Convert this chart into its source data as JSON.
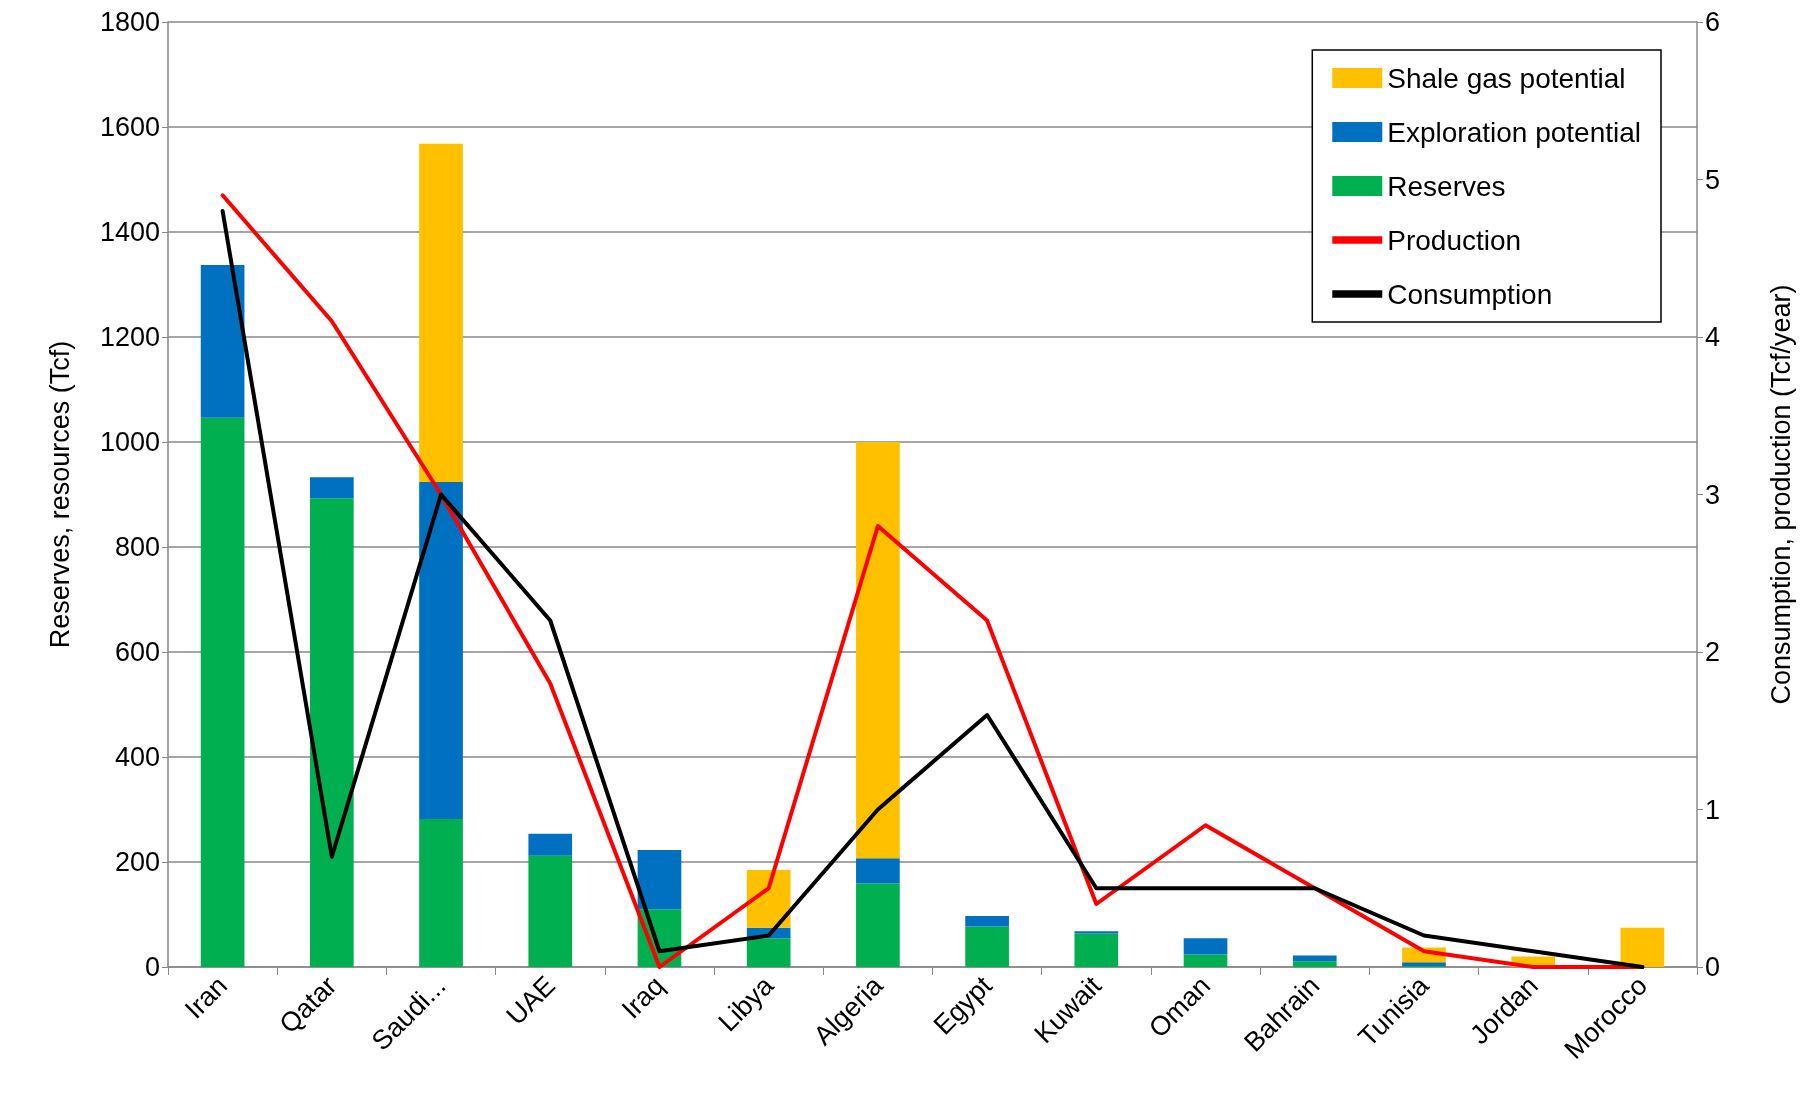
{
  "chart_data": {
    "type": "bar",
    "ylabel": "Reserves, resources (Tcf)",
    "y2label": "Consumption, production (Tcf/year)",
    "categories": [
      "Iran",
      "Qatar",
      "Saudi...",
      "UAE",
      "Iraq",
      "Libya",
      "Algeria",
      "Egypt",
      "Kuwait",
      "Oman",
      "Bahrain",
      "Tunisia",
      "Jordan",
      "Morocco"
    ],
    "stacked": true,
    "series": [
      {
        "name": "Reserves",
        "color": "#00b050",
        "values": [
          1046,
          893,
          282,
          212,
          110,
          55,
          159,
          77,
          64,
          24,
          11,
          2,
          0,
          0
        ]
      },
      {
        "name": "Exploration potential",
        "color": "#0070c0",
        "values": [
          291,
          40,
          642,
          42,
          113,
          20,
          48,
          20,
          4,
          31,
          11,
          7,
          0,
          0
        ]
      },
      {
        "name": "Shale gas potential",
        "color": "#ffc000",
        "values": [
          0,
          0,
          644,
          0,
          0,
          110,
          793,
          0,
          0,
          0,
          0,
          28,
          20,
          75
        ]
      },
      {
        "name": "Production",
        "type": "line",
        "axis": "y2",
        "color": "#ff0000",
        "values": [
          4.9,
          4.1,
          3.0,
          1.8,
          0,
          0.5,
          2.8,
          2.2,
          0.4,
          0.9,
          0.5,
          0.1,
          0,
          0
        ]
      },
      {
        "name": "Consumption",
        "type": "line",
        "axis": "y2",
        "color": "#000000",
        "values": [
          4.8,
          0.7,
          3.0,
          2.2,
          0.1,
          0.2,
          1.0,
          1.6,
          0.5,
          0.5,
          0.5,
          0.2,
          0.1,
          0
        ]
      }
    ],
    "ylim": [
      0,
      1800
    ],
    "yticks": [
      0,
      200,
      400,
      600,
      800,
      1000,
      1200,
      1400,
      1600,
      1800
    ],
    "y2lim": [
      0,
      6
    ],
    "y2ticks": [
      0,
      1,
      2,
      3,
      4,
      5,
      6
    ],
    "grid": "y",
    "legend": "top right",
    "marker": "none",
    "line_style": "solid"
  }
}
